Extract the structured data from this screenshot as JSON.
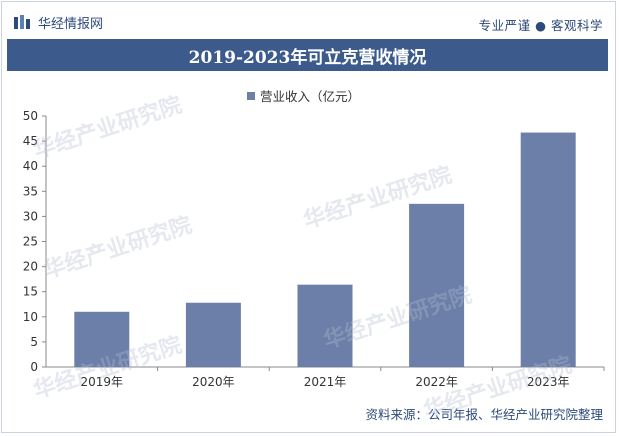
{
  "header": {
    "brand": "华经情报网",
    "tagline": "专业严谨 ● 客观科学"
  },
  "title": "2019-2023年可立克营收情况",
  "footer": "资料来源：公司年报、华经产业研究院整理",
  "watermark": "华经产业研究院",
  "colors": {
    "bar": "#6b7fa8",
    "title_bg": "#3c5a8c",
    "brand": "#2c4a7a"
  },
  "chart_data": {
    "type": "bar",
    "categories": [
      "2019年",
      "2020年",
      "2021年",
      "2022年",
      "2023年"
    ],
    "series": [
      {
        "name": "营业收入（亿元）",
        "values": [
          11.0,
          12.8,
          16.4,
          32.5,
          46.7
        ]
      }
    ],
    "ylim": [
      0,
      50
    ],
    "yticks": [
      0,
      5,
      10,
      15,
      20,
      25,
      30,
      35,
      40,
      45,
      50
    ],
    "legend": "top-center",
    "grid": false
  }
}
